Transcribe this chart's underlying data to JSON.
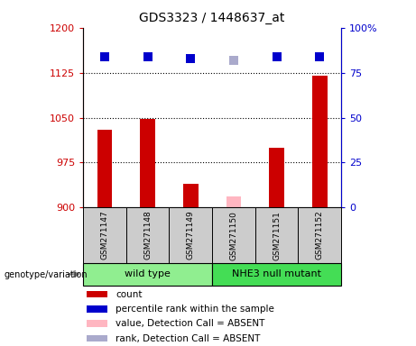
{
  "title": "GDS3323 / 1448637_at",
  "samples": [
    "GSM271147",
    "GSM271148",
    "GSM271149",
    "GSM271150",
    "GSM271151",
    "GSM271152"
  ],
  "groups": [
    {
      "name": "wild type",
      "indices": [
        0,
        1,
        2
      ],
      "color": "#90EE90"
    },
    {
      "name": "NHE3 null mutant",
      "indices": [
        3,
        4,
        5
      ],
      "color": "#44DD55"
    }
  ],
  "count_values": [
    1030,
    1048,
    940,
    null,
    1000,
    1120
  ],
  "count_absent": [
    null,
    null,
    null,
    918,
    null,
    null
  ],
  "rank_values": [
    84,
    84,
    83,
    null,
    84,
    84
  ],
  "rank_absent": [
    null,
    null,
    null,
    82,
    null,
    null
  ],
  "ylim_left": [
    900,
    1200
  ],
  "ylim_right": [
    0,
    100
  ],
  "yticks_left": [
    900,
    975,
    1050,
    1125,
    1200
  ],
  "yticks_right": [
    0,
    25,
    50,
    75,
    100
  ],
  "ytick_labels_left": [
    "900",
    "975",
    "1050",
    "1125",
    "1200"
  ],
  "ytick_labels_right": [
    "0",
    "25",
    "50",
    "75",
    "100%"
  ],
  "hlines": [
    975,
    1050,
    1125
  ],
  "bar_color": "#CC0000",
  "bar_absent_color": "#FFB6C1",
  "dot_color": "#0000CC",
  "dot_absent_color": "#AAAACC",
  "bar_width": 0.35,
  "dot_size": 55,
  "legend_items": [
    {
      "label": "count",
      "color": "#CC0000"
    },
    {
      "label": "percentile rank within the sample",
      "color": "#0000CC"
    },
    {
      "label": "value, Detection Call = ABSENT",
      "color": "#FFB6C1"
    },
    {
      "label": "rank, Detection Call = ABSENT",
      "color": "#AAAACC"
    }
  ],
  "group_label": "genotype/variation",
  "axis_label_color_left": "#CC0000",
  "axis_label_color_right": "#0000CC",
  "sample_box_color": "#CCCCCC",
  "plot_facecolor": "white"
}
